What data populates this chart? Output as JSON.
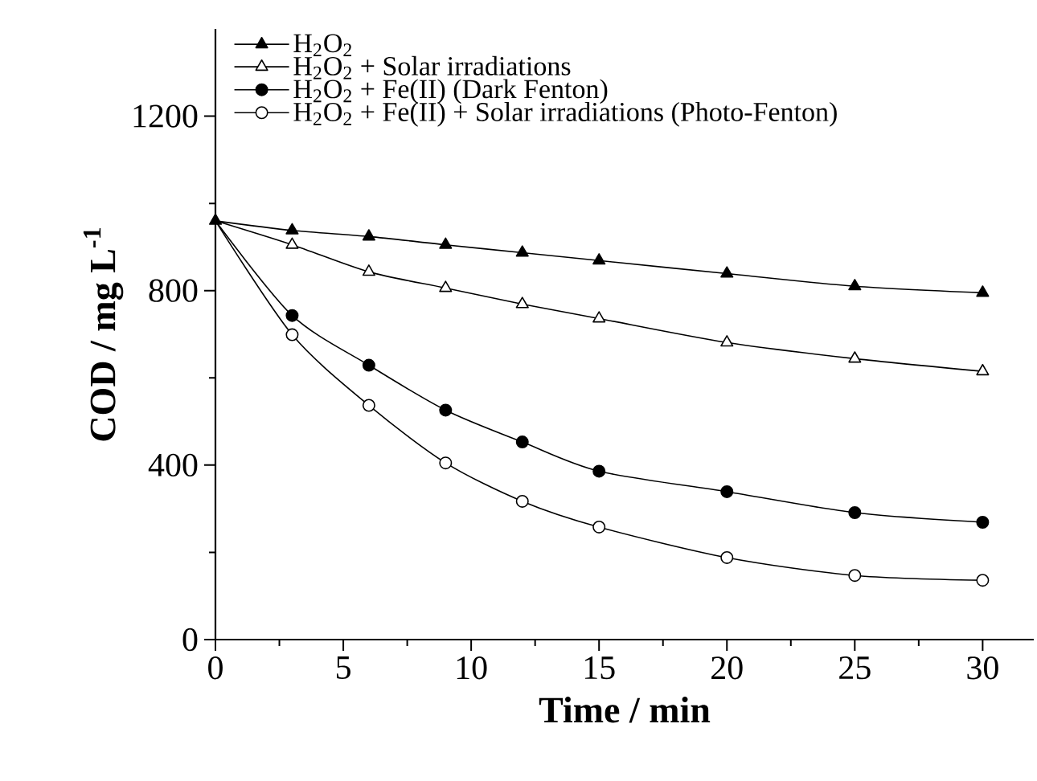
{
  "chart_data": {
    "type": "line",
    "xlabel": "Time / min",
    "ylabel": "COD / mg L$^{-1}$",
    "x": [
      0,
      3,
      6,
      9,
      12,
      15,
      20,
      25,
      30
    ],
    "series": [
      {
        "name": "H$_{2}$O$_{2}$",
        "color": "#000000",
        "marker": "triangle",
        "values": [
          960,
          938,
          924,
          905,
          887,
          869,
          839,
          810,
          795
        ]
      },
      {
        "name": "H$_{2}$O$_{2}$ + Solar irradiations",
        "color": "#000000",
        "marker": "triangle",
        "values": [
          960,
          905,
          843,
          806,
          769,
          736,
          681,
          644,
          615
        ]
      },
      {
        "name": "H$_{2}$O$_{2}$ + Fe(II) (Dark Fenton)",
        "color": "#000000",
        "marker": "circle",
        "values": [
          960,
          743,
          629,
          526,
          453,
          386,
          339,
          291,
          269
        ]
      },
      {
        "name": "H$_{2}$O$_{2}$ + Fe(II) + Solar irradiations (Photo-Fenton)",
        "color": "#000000",
        "marker": "circle",
        "values": [
          960,
          699,
          537,
          405,
          317,
          258,
          188,
          147,
          136
        ]
      }
    ],
    "xlim": [
      0,
      32
    ],
    "ylim": [
      0,
      1400
    ],
    "xticks": [
      0,
      5,
      10,
      15,
      20,
      25,
      30
    ],
    "yticks": [
      0,
      400,
      800,
      1200
    ],
    "grid": false,
    "legend": "top left",
    "line_style": "solid"
  }
}
